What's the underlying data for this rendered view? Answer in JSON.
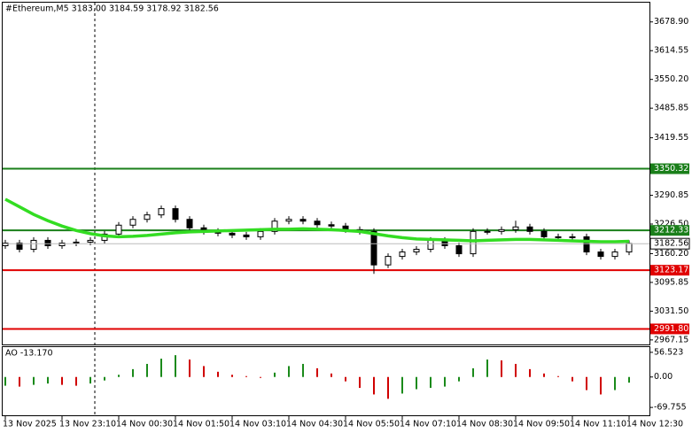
{
  "chart_data": [
    {
      "type": "candlestick",
      "title": "#Ethereum,M5  3183.00 3184.59 3178.92 3182.56",
      "categories": [
        "13 Nov 2025",
        null,
        null,
        null,
        "13 Nov 23:10",
        null,
        null,
        null,
        "14 Nov 00:30",
        null,
        null,
        null,
        "14 Nov 01:50",
        null,
        null,
        null,
        "14 Nov 03:10",
        null,
        null,
        null,
        "14 Nov 04:30",
        null,
        null,
        null,
        "14 Nov 05:50",
        null,
        null,
        null,
        "14 Nov 07:10",
        null,
        null,
        null,
        "14 Nov 08:30",
        null,
        null,
        null,
        "14 Nov 09:50",
        null,
        null,
        null,
        "14 Nov 11:10",
        null,
        null,
        null,
        "14 Nov 12:30"
      ],
      "open": [
        3178,
        3184,
        3170,
        3190,
        3178,
        3184,
        3186,
        3190,
        3204,
        3224,
        3237,
        3247,
        3261,
        3237,
        3218,
        3210,
        3206,
        3202,
        3198,
        3210,
        3233,
        3237,
        3233,
        3225,
        3222,
        3214,
        3210,
        3135,
        3154,
        3164,
        3170,
        3190,
        3178,
        3160,
        3210,
        3210,
        3214,
        3220,
        3210,
        3198,
        3198,
        3198,
        3164,
        3154,
        3164
      ],
      "high": [
        3191,
        3191,
        3197,
        3197,
        3191,
        3193,
        3197,
        3211,
        3231,
        3244,
        3254,
        3268,
        3268,
        3244,
        3225,
        3217,
        3213,
        3209,
        3217,
        3240,
        3244,
        3244,
        3240,
        3232,
        3229,
        3221,
        3217,
        3161,
        3171,
        3177,
        3197,
        3197,
        3185,
        3217,
        3217,
        3221,
        3234,
        3227,
        3217,
        3205,
        3205,
        3205,
        3171,
        3171,
        3190
      ],
      "low": [
        3171,
        3163,
        3163,
        3171,
        3171,
        3177,
        3179,
        3183,
        3197,
        3217,
        3230,
        3240,
        3230,
        3211,
        3203,
        3199,
        3195,
        3191,
        3191,
        3203,
        3226,
        3226,
        3218,
        3215,
        3207,
        3203,
        3115,
        3128,
        3147,
        3157,
        3163,
        3171,
        3153,
        3153,
        3203,
        3203,
        3207,
        3203,
        3191,
        3191,
        3191,
        3157,
        3147,
        3147,
        3157
      ],
      "close": [
        3184,
        3170,
        3190,
        3178,
        3184,
        3186,
        3190,
        3204,
        3224,
        3237,
        3247,
        3261,
        3237,
        3218,
        3210,
        3206,
        3202,
        3198,
        3210,
        3233,
        3237,
        3233,
        3225,
        3222,
        3214,
        3210,
        3135,
        3154,
        3164,
        3170,
        3190,
        3178,
        3160,
        3210,
        3210,
        3214,
        3220,
        3210,
        3198,
        3198,
        3198,
        3164,
        3154,
        3164,
        3183
      ],
      "moving_average": {
        "color": "#33dd22",
        "values": [
          3282,
          3265,
          3248,
          3234,
          3222,
          3212,
          3205,
          3200,
          3198,
          3199,
          3201,
          3204,
          3207,
          3209,
          3210,
          3211,
          3212,
          3213,
          3214,
          3215,
          3215,
          3216,
          3215,
          3214,
          3212,
          3210,
          3205,
          3200,
          3196,
          3193,
          3192,
          3191,
          3190,
          3189,
          3190,
          3191,
          3192,
          3192,
          3191,
          3190,
          3189,
          3188,
          3187,
          3187,
          3188
        ]
      },
      "levels": [
        {
          "value": 3350.32,
          "color": "#1a7f1a"
        },
        {
          "value": 3212.33,
          "color": "#1a7f1a"
        },
        {
          "value": 3123.17,
          "color": "#e00000"
        },
        {
          "value": 2991.8,
          "label": "2991.80",
          "color": "#e00000"
        }
      ],
      "current_price": 3182.56,
      "ylim": [
        2957,
        3722
      ],
      "yticks": [
        {
          "value": 3678.9,
          "label": "3678.90"
        },
        3614.55,
        {
          "value": 3550.2,
          "label": "3550.20"
        },
        3485.85,
        3419.55,
        3290.85,
        {
          "value": 3226.5,
          "label": "3226.50"
        },
        {
          "value": 3160.2,
          "label": "3160.20"
        },
        3095.85,
        {
          "value": 3031.5,
          "label": "3031.50"
        },
        2967.15
      ]
    },
    {
      "type": "bar",
      "title": "AO -13.170",
      "up_color": "#1a8a1a",
      "down_color": "#d00000",
      "values": [
        -20,
        -22,
        -18,
        -15,
        -18,
        -20,
        -15,
        -8,
        5,
        18,
        30,
        42,
        50,
        40,
        25,
        12,
        5,
        2,
        -2,
        10,
        25,
        30,
        20,
        8,
        -10,
        -25,
        -40,
        -50,
        -38,
        -28,
        -25,
        -22,
        -10,
        20,
        40,
        38,
        30,
        18,
        8,
        2,
        -10,
        -30,
        -40,
        -30,
        -13
      ],
      "ylim": [
        -87.8,
        68.5
      ],
      "yticks": [
        56.523,
        {
          "value": 0,
          "label": "0.00"
        },
        -69.755
      ]
    }
  ]
}
